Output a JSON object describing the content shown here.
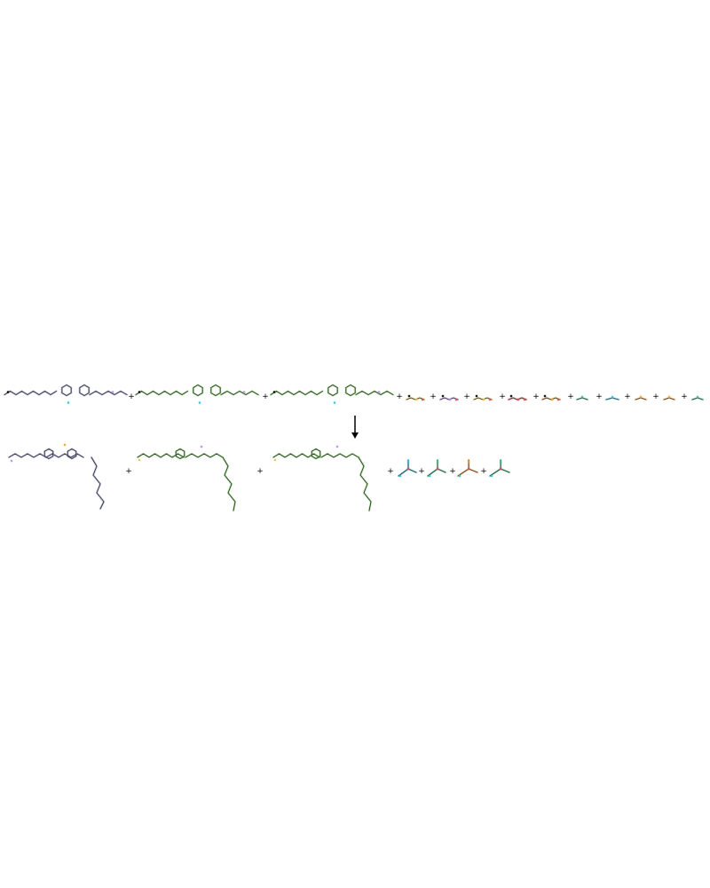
{
  "diagram": {
    "kind": "reaction-scheme",
    "arrow_direction": "down",
    "colors": {
      "blue": "#8f8fd6",
      "green": "#6ad64a",
      "yellow": "#e6c84a",
      "purple": "#b58ef0",
      "orange": "#f0a030",
      "red": "#e05050",
      "cyan": "#30c0e0",
      "teal": "#40c080",
      "ink": "#000000"
    },
    "plus_sign": "+",
    "reactants": [
      {
        "id": "r1",
        "label": "",
        "color": "blue",
        "style": "large"
      },
      {
        "id": "r2",
        "label": "",
        "color": "green",
        "style": "large"
      },
      {
        "id": "r3",
        "label": "",
        "color": "green",
        "style": "large"
      },
      {
        "id": "r4",
        "label": "",
        "color": "yellow",
        "style": "small"
      },
      {
        "id": "r5",
        "label": "",
        "color": "purple",
        "style": "small"
      },
      {
        "id": "r6",
        "label": "",
        "color": "yellow",
        "style": "small"
      },
      {
        "id": "r7",
        "label": "",
        "color": "red",
        "style": "small"
      },
      {
        "id": "r8",
        "label": "",
        "color": "orange",
        "style": "small"
      },
      {
        "id": "r9",
        "label": "",
        "color": "teal",
        "style": "tiny"
      },
      {
        "id": "r10",
        "label": "",
        "color": "cyan",
        "style": "tiny"
      },
      {
        "id": "r11",
        "label": "",
        "color": "orange",
        "style": "tiny"
      },
      {
        "id": "r12",
        "label": "",
        "color": "orange",
        "style": "tiny"
      },
      {
        "id": "r13",
        "label": "",
        "color": "teal",
        "style": "tiny"
      }
    ],
    "products": [
      {
        "id": "p1",
        "label": "",
        "color": "blue",
        "style": "large"
      },
      {
        "id": "p2",
        "label": "",
        "color": "green",
        "style": "large"
      },
      {
        "id": "p3",
        "label": "",
        "color": "green",
        "style": "large"
      },
      {
        "id": "p4",
        "label": "",
        "color": "cyan",
        "style": "small"
      },
      {
        "id": "p5",
        "label": "",
        "color": "teal",
        "style": "small"
      },
      {
        "id": "p6",
        "label": "",
        "color": "orange",
        "style": "small"
      },
      {
        "id": "p7",
        "label": "",
        "color": "teal",
        "style": "small"
      }
    ]
  }
}
